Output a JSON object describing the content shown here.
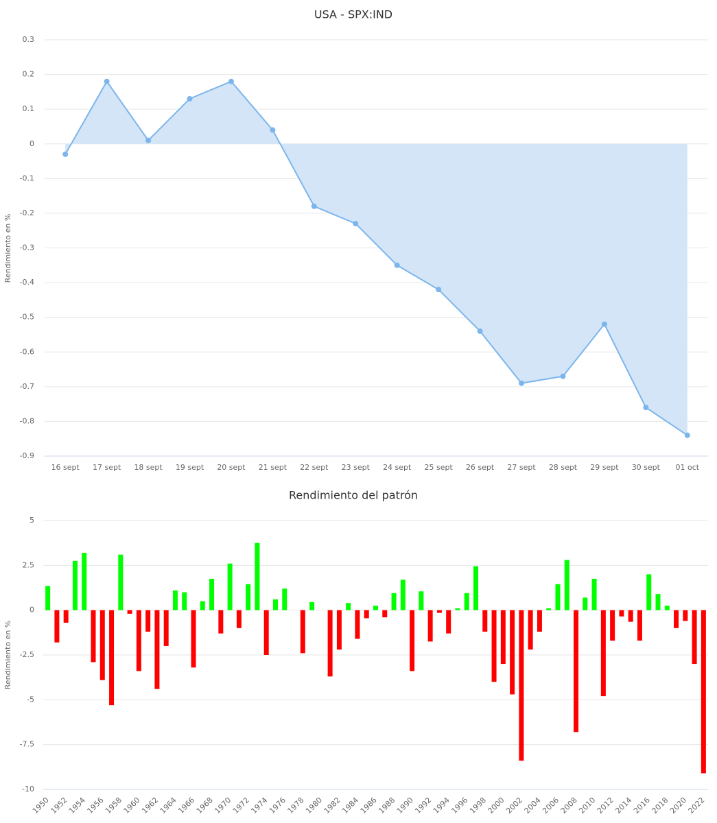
{
  "chart_data": [
    {
      "type": "area",
      "title": "USA - SPX:IND",
      "y_label": "Rendimiento en %",
      "categories": [
        "16 sept",
        "17 sept",
        "18 sept",
        "19 sept",
        "20 sept",
        "21 sept",
        "22 sept",
        "23 sept",
        "24 sept",
        "25 sept",
        "26 sept",
        "27 sept",
        "28 sept",
        "29 sept",
        "30 sept",
        "01 oct"
      ],
      "values": [
        -0.03,
        0.18,
        0.01,
        0.13,
        0.18,
        0.04,
        -0.18,
        -0.23,
        -0.35,
        -0.42,
        -0.54,
        -0.69,
        -0.67,
        -0.52,
        -0.76,
        -0.84
      ],
      "color": "#7cb5ec",
      "fill_color": "#d3e5f7",
      "ylim": [
        -0.9,
        0.3
      ],
      "yticks": [
        -0.9,
        -0.8,
        -0.7,
        -0.6,
        -0.5,
        -0.4,
        -0.3,
        -0.2,
        -0.1,
        0,
        0.1,
        0.2,
        0.3
      ],
      "grid": true
    },
    {
      "type": "bar",
      "title": "Rendimiento del patrón",
      "y_label": "Rendimiento en %",
      "categories": [
        "1950",
        null,
        "1952",
        null,
        "1954",
        null,
        "1956",
        null,
        "1958",
        null,
        "1960",
        null,
        "1962",
        null,
        "1964",
        null,
        "1966",
        null,
        "1968",
        null,
        "1970",
        null,
        "1972",
        null,
        "1974",
        null,
        "1976",
        null,
        "1978",
        null,
        "1980",
        null,
        "1982",
        null,
        "1984",
        null,
        "1986",
        null,
        "1988",
        null,
        "1990",
        null,
        "1992",
        null,
        "1994",
        null,
        "1996",
        null,
        "1998",
        null,
        "2000",
        null,
        "2002",
        null,
        "2004",
        null,
        "2006",
        null,
        "2008",
        null,
        "2010",
        null,
        "2012",
        null,
        "2014",
        null,
        "2016",
        null,
        "2018",
        null,
        "2020",
        null,
        "2022"
      ],
      "values": [
        1.35,
        -1.8,
        -0.7,
        2.75,
        3.2,
        -2.9,
        -3.9,
        -5.3,
        3.1,
        -0.2,
        -3.4,
        -1.2,
        -4.4,
        -2.0,
        1.1,
        1.0,
        -3.2,
        0.5,
        1.75,
        -1.3,
        2.6,
        -1.0,
        1.45,
        3.75,
        -2.5,
        0.6,
        1.2,
        0,
        -2.4,
        0.45,
        0,
        -3.7,
        -2.2,
        0.4,
        -1.6,
        -0.45,
        0.25,
        -0.4,
        0.95,
        1.7,
        -3.4,
        1.05,
        -1.75,
        -0.15,
        -1.3,
        0.1,
        0.95,
        2.45,
        -1.2,
        -4.0,
        -3.0,
        -4.7,
        -8.4,
        -2.2,
        -1.2,
        0.1,
        1.45,
        2.8,
        -6.8,
        0.7,
        1.75,
        -4.8,
        -1.7,
        -0.35,
        -0.65,
        -1.7,
        2.0,
        0.9,
        0.25,
        -1.0,
        -0.6,
        -3.0,
        -9.1
      ],
      "positive_color": "#00ff00",
      "negative_color": "#ff0000",
      "ylim": [
        -10,
        5
      ],
      "yticks": [
        -10,
        -7.5,
        -5,
        -2.5,
        0,
        2.5,
        5
      ],
      "grid": true
    }
  ]
}
